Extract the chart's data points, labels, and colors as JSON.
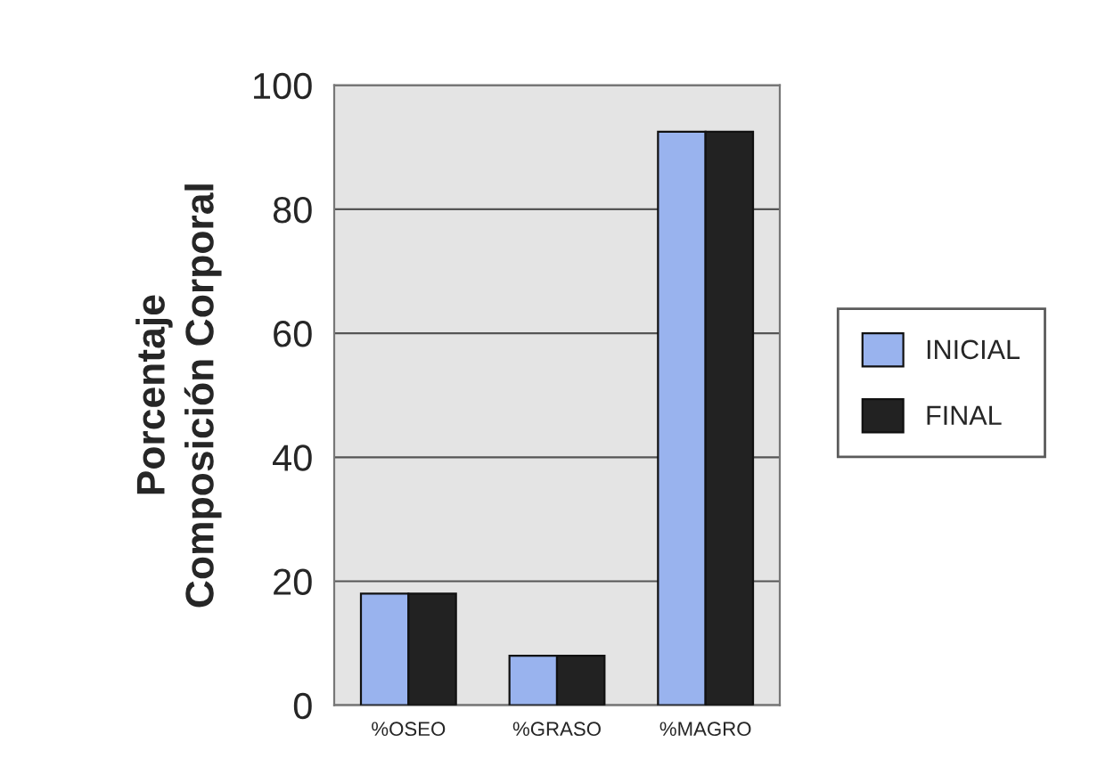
{
  "chart_data": {
    "type": "bar",
    "ylabel": "Porcentaje\nComposición Corporal",
    "categories": [
      "%OSEO",
      "%GRASO",
      "%MAGRO"
    ],
    "series": [
      {
        "name": "INICIAL",
        "color": "#99b3ee",
        "values": [
          18,
          8,
          92.5
        ]
      },
      {
        "name": "FINAL",
        "color": "#222222",
        "values": [
          18,
          8,
          92.5
        ]
      }
    ],
    "ylim": [
      0,
      100
    ],
    "yticks": [
      0,
      20,
      40,
      60,
      80,
      100
    ],
    "grid": "y",
    "legend": "right"
  }
}
